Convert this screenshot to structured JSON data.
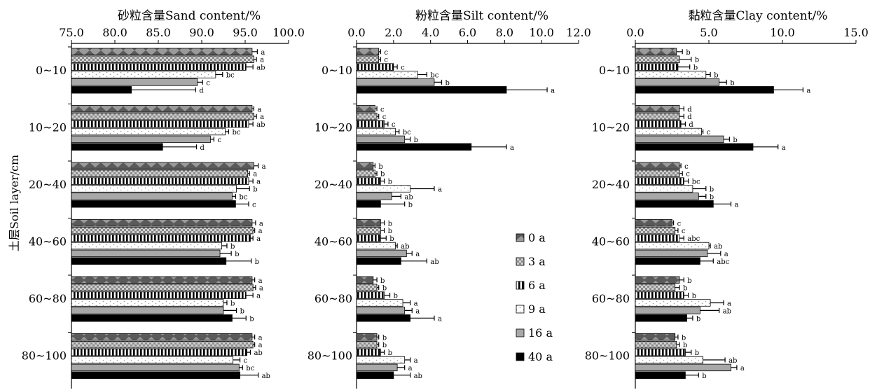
{
  "y_axis_label": "土层Soil layer/cm",
  "categories": [
    "0~10",
    "10~20",
    "20~40",
    "40~60",
    "60~80",
    "80~100"
  ],
  "legend": [
    "0 a",
    "3 a",
    "6 a",
    "9 a",
    "16 a",
    "40 a"
  ],
  "chart_data": [
    {
      "type": "bar",
      "orientation": "horizontal",
      "title": "砂粒含量Sand content/%",
      "xlim": [
        75,
        100
      ],
      "ticks": [
        "75.0",
        "80.0",
        "85.0",
        "90.0",
        "95.0",
        "100.0"
      ],
      "categories": [
        "0~10",
        "10~20",
        "20~40",
        "40~60",
        "60~80",
        "80~100"
      ],
      "series": [
        {
          "name": "0 a",
          "values": [
            95.8,
            95.8,
            96.0,
            95.8,
            95.8,
            95.8
          ],
          "errors": [
            0.6,
            0.2,
            0.5,
            0.4,
            0.3,
            0.3
          ],
          "letters": [
            "a",
            "a",
            "a",
            "a",
            "a",
            "a"
          ]
        },
        {
          "name": "3 a",
          "values": [
            96.0,
            96.0,
            95.3,
            95.9,
            95.9,
            95.9
          ],
          "errors": [
            0.3,
            0.3,
            0.2,
            0.2,
            0.3,
            0.2
          ],
          "letters": [
            "a",
            "a",
            "a",
            "a",
            "a",
            "a"
          ]
        },
        {
          "name": "6 a",
          "values": [
            95.1,
            95.4,
            95.4,
            95.6,
            95.1,
            95.2
          ],
          "errors": [
            0.8,
            0.5,
            0.5,
            0.3,
            0.8,
            0.4
          ],
          "letters": [
            "ab",
            "ab",
            "a",
            "a",
            "a",
            "ab"
          ]
        },
        {
          "name": "9 a",
          "values": [
            91.6,
            92.7,
            94.0,
            92.3,
            92.5,
            93.6
          ],
          "errors": [
            0.8,
            0.4,
            1.5,
            0.6,
            0.4,
            0.8
          ],
          "letters": [
            "bc",
            "bc",
            "b",
            "b",
            "b",
            "c"
          ]
        },
        {
          "name": "16 a",
          "values": [
            89.5,
            91.0,
            93.5,
            92.1,
            92.5,
            94.3
          ],
          "errors": [
            0.6,
            0.4,
            0.4,
            1.3,
            1.5,
            0.4
          ],
          "letters": [
            "c",
            "c",
            "bc",
            "b",
            "b",
            "bc"
          ]
        },
        {
          "name": "40 a",
          "values": [
            81.9,
            85.5,
            93.9,
            92.8,
            93.5,
            94.4
          ],
          "errors": [
            7.4,
            3.9,
            1.5,
            2.9,
            1.6,
            2.1
          ],
          "letters": [
            "d",
            "d",
            "c",
            "b",
            "b",
            "ab"
          ]
        }
      ]
    },
    {
      "type": "bar",
      "orientation": "horizontal",
      "title": "粉粒含量Silt  content/%",
      "xlim": [
        0,
        12
      ],
      "ticks": [
        "0.0",
        "2.0",
        "4.0",
        "6.0",
        "8.0",
        "10.0",
        "12.0"
      ],
      "categories": [
        "0~10",
        "10~20",
        "20~40",
        "40~60",
        "60~80",
        "80~100"
      ],
      "series": [
        {
          "name": "0 a",
          "values": [
            1.2,
            1.0,
            0.9,
            1.3,
            0.9,
            1.1
          ],
          "errors": [
            0.1,
            0.1,
            0.1,
            0.2,
            0.2,
            0.1
          ],
          "letters": [
            "c",
            "c",
            "b",
            "b",
            "b",
            "b"
          ]
        },
        {
          "name": "3 a",
          "values": [
            1.2,
            1.1,
            1.0,
            1.3,
            1.1,
            1.1
          ],
          "errors": [
            0.1,
            0.1,
            0.1,
            0.2,
            0.1,
            0.1
          ],
          "letters": [
            "c",
            "c",
            "b",
            "b",
            "b",
            "b"
          ]
        },
        {
          "name": "6 a",
          "values": [
            2.0,
            1.5,
            1.3,
            1.3,
            1.5,
            1.3
          ],
          "errors": [
            0.2,
            0.2,
            0.2,
            0.3,
            0.3,
            0.2
          ],
          "letters": [
            "c",
            "c",
            "b",
            "b",
            "b",
            "b"
          ]
        },
        {
          "name": "9 a",
          "values": [
            3.3,
            2.1,
            2.9,
            2.1,
            2.5,
            2.6
          ],
          "errors": [
            0.5,
            0.2,
            1.3,
            0.1,
            0.4,
            0.3
          ],
          "letters": [
            "bc",
            "bc",
            "a",
            "ab",
            "a",
            "a"
          ]
        },
        {
          "name": "16 a",
          "values": [
            4.2,
            2.6,
            1.9,
            2.7,
            2.6,
            2.2
          ],
          "errors": [
            0.4,
            0.3,
            0.5,
            0.3,
            0.4,
            0.4
          ],
          "letters": [
            "b",
            "b",
            "ab",
            "a",
            "a",
            "a"
          ]
        },
        {
          "name": "40 a",
          "values": [
            8.1,
            6.2,
            1.3,
            2.4,
            2.9,
            2.0
          ],
          "errors": [
            2.2,
            1.9,
            1.3,
            1.4,
            1.3,
            0.9
          ],
          "letters": [
            "a",
            "a",
            "b",
            "ab",
            "a",
            "ab"
          ]
        }
      ]
    },
    {
      "type": "bar",
      "orientation": "horizontal",
      "title": "黏粒含量Clay content/%",
      "xlim": [
        0,
        15
      ],
      "ticks": [
        "0.0",
        "5.0",
        "10.0",
        "15.0"
      ],
      "categories": [
        "0~10",
        "10~20",
        "20~40",
        "40~60",
        "60~80",
        "80~100"
      ],
      "series": [
        {
          "name": "0 a",
          "values": [
            2.8,
            3.0,
            3.0,
            2.5,
            3.0,
            2.7
          ],
          "errors": [
            0.4,
            0.3,
            0.1,
            0.1,
            0.3,
            0.2
          ],
          "letters": [
            "b",
            "d",
            "c",
            "c",
            "b",
            "b"
          ]
        },
        {
          "name": "3 a",
          "values": [
            3.0,
            3.0,
            3.0,
            2.7,
            2.7,
            2.8
          ],
          "errors": [
            0.8,
            0.3,
            0.2,
            0.2,
            0.3,
            0.2
          ],
          "letters": [
            "b",
            "d",
            "c",
            "c",
            "b",
            "b"
          ]
        },
        {
          "name": "6 a",
          "values": [
            2.9,
            3.1,
            3.3,
            3.0,
            3.3,
            3.4
          ],
          "errors": [
            0.8,
            0.3,
            0.3,
            0.3,
            0.3,
            0.4
          ],
          "letters": [
            "b",
            "d",
            "bc",
            "abc",
            "b",
            "b"
          ]
        },
        {
          "name": "9 a",
          "values": [
            4.8,
            4.5,
            3.9,
            5.0,
            5.1,
            4.6
          ],
          "errors": [
            0.3,
            0.1,
            0.9,
            0.1,
            0.9,
            1.5
          ],
          "letters": [
            "b",
            "c",
            "b",
            "ab",
            "a",
            "ab"
          ]
        },
        {
          "name": "16 a",
          "values": [
            5.7,
            6.0,
            4.3,
            4.9,
            4.4,
            6.5
          ],
          "errors": [
            0.5,
            0.4,
            0.5,
            0.9,
            1.3,
            0.4
          ],
          "letters": [
            "b",
            "b",
            "b",
            "a",
            "ab",
            "a"
          ]
        },
        {
          "name": "40 a",
          "values": [
            9.4,
            8.0,
            5.3,
            4.4,
            3.5,
            3.4
          ],
          "errors": [
            2.0,
            1.7,
            1.2,
            0.9,
            0.4,
            0.9
          ],
          "letters": [
            "a",
            "a",
            "a",
            "abc",
            "b",
            "b"
          ]
        }
      ]
    }
  ]
}
